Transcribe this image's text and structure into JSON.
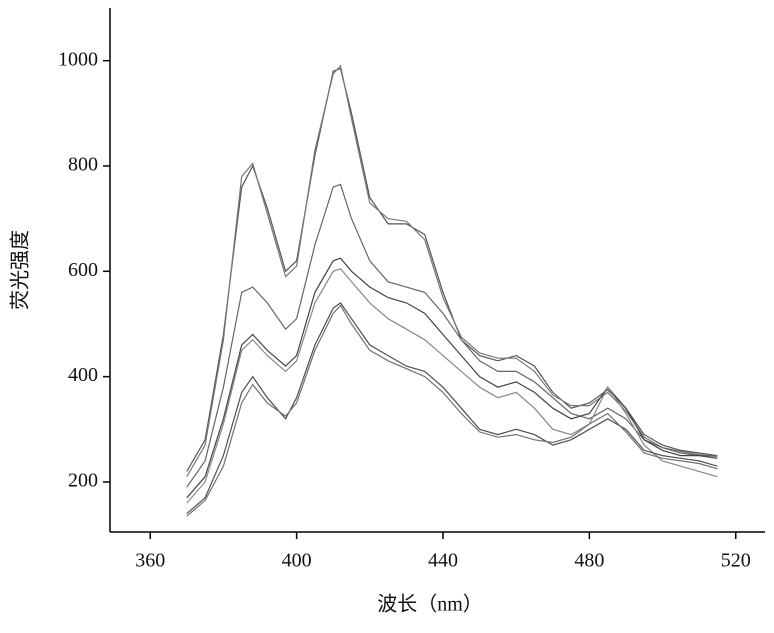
{
  "chart_data": {
    "type": "line",
    "x_label": "波长（nm）",
    "y_label": "荧光强度",
    "x": [
      370,
      375,
      380,
      385,
      388,
      392,
      397,
      400,
      405,
      410,
      412,
      415,
      420,
      425,
      430,
      435,
      440,
      445,
      450,
      455,
      460,
      465,
      470,
      475,
      480,
      485,
      490,
      495,
      500,
      505,
      510,
      515
    ],
    "series": [
      {
        "color": "#555555",
        "values": [
          220,
          280,
          480,
          760,
          800,
          720,
          600,
          620,
          820,
          980,
          985,
          900,
          740,
          690,
          690,
          670,
          560,
          470,
          440,
          430,
          440,
          420,
          370,
          340,
          350,
          375,
          340,
          290,
          270,
          260,
          255,
          250
        ]
      },
      {
        "color": "#777777",
        "values": [
          210,
          270,
          470,
          780,
          805,
          710,
          590,
          610,
          830,
          975,
          990,
          890,
          730,
          700,
          695,
          660,
          550,
          475,
          445,
          435,
          435,
          410,
          365,
          345,
          345,
          370,
          335,
          285,
          265,
          258,
          252,
          248
        ]
      },
      {
        "color": "#666666",
        "values": [
          190,
          240,
          380,
          560,
          570,
          540,
          490,
          510,
          650,
          760,
          765,
          700,
          620,
          580,
          570,
          560,
          520,
          470,
          430,
          410,
          410,
          390,
          360,
          330,
          320,
          340,
          320,
          280,
          265,
          255,
          250,
          250
        ]
      },
      {
        "color": "#444444",
        "values": [
          170,
          210,
          320,
          460,
          480,
          450,
          420,
          440,
          560,
          620,
          625,
          600,
          570,
          550,
          540,
          520,
          480,
          440,
          400,
          380,
          390,
          370,
          340,
          320,
          330,
          380,
          340,
          280,
          260,
          250,
          250,
          245
        ]
      },
      {
        "color": "#888888",
        "values": [
          160,
          200,
          310,
          450,
          470,
          440,
          410,
          430,
          540,
          600,
          605,
          580,
          540,
          510,
          490,
          470,
          440,
          410,
          380,
          360,
          370,
          340,
          300,
          290,
          310,
          380,
          330,
          270,
          240,
          230,
          220,
          210
        ]
      },
      {
        "color": "#505050",
        "values": [
          140,
          170,
          250,
          370,
          400,
          360,
          320,
          360,
          460,
          530,
          540,
          510,
          460,
          440,
          420,
          410,
          380,
          340,
          300,
          290,
          300,
          290,
          270,
          280,
          300,
          320,
          300,
          260,
          250,
          245,
          240,
          230
        ]
      },
      {
        "color": "#707070",
        "values": [
          135,
          165,
          230,
          350,
          385,
          350,
          325,
          350,
          450,
          520,
          535,
          500,
          450,
          430,
          415,
          400,
          370,
          330,
          295,
          285,
          290,
          280,
          275,
          285,
          310,
          330,
          295,
          255,
          245,
          240,
          235,
          225
        ]
      }
    ],
    "xlim": [
      349,
      528
    ],
    "ylim": [
      105,
      1100
    ],
    "xticks": [
      360,
      400,
      440,
      480,
      520
    ],
    "yticks": [
      200,
      400,
      600,
      800,
      1000
    ]
  }
}
